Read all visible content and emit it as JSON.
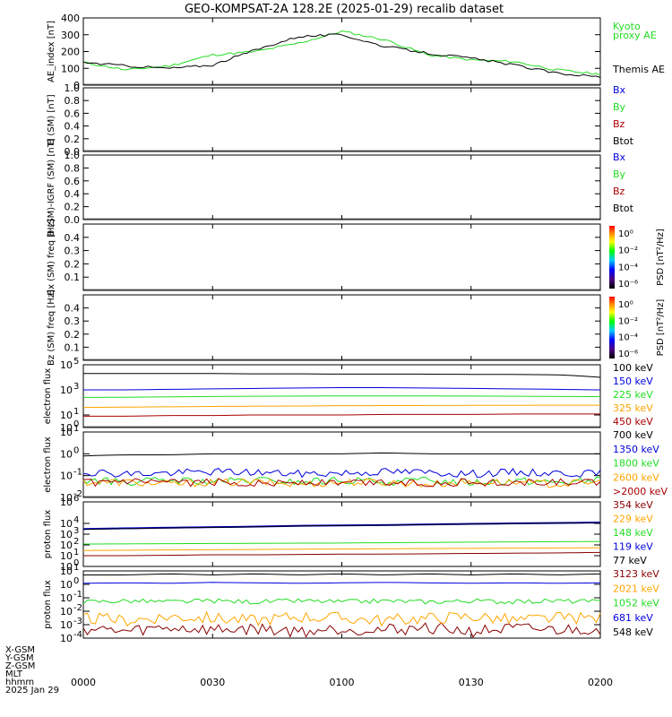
{
  "title": "GEO-KOMPSAT-2A 128.2E (2025-01-29) recalib dataset",
  "colors": {
    "black": "#000000",
    "blue": "#0000dd",
    "green": "#22dd22",
    "red": "#aa0000",
    "orange": "#ffa500",
    "darkred": "#880000"
  },
  "footer": {
    "labels": [
      "X-GSM",
      "Y-GSM",
      "Z-GSM",
      "MLT",
      "hhmm",
      "2025 Jan 29"
    ],
    "times": [
      "0000",
      "0030",
      "0100",
      "0130",
      "0200"
    ]
  },
  "chart_data": [
    {
      "type": "line",
      "ylabel": "AE_index [nT]",
      "ylim": [
        0,
        400
      ],
      "yticks": [
        "400",
        "300",
        "200",
        "100",
        "0"
      ],
      "x": [
        "0000",
        "0010",
        "0020",
        "0030",
        "0040",
        "0050",
        "0100",
        "0110",
        "0120",
        "0130",
        "0140",
        "0150",
        "0200"
      ],
      "series": [
        {
          "name": "Kyoto proxy AE",
          "color": "#22dd22",
          "values": [
            135,
            90,
            115,
            180,
            200,
            250,
            320,
            270,
            180,
            150,
            140,
            90,
            65
          ]
        },
        {
          "name": "Themis AE",
          "color": "#000000",
          "values": [
            135,
            115,
            100,
            120,
            210,
            290,
            300,
            230,
            190,
            160,
            120,
            70,
            50
          ]
        }
      ],
      "legend": [
        {
          "text": "Kyoto",
          "color": "#22dd22"
        },
        {
          "text": "proxy AE",
          "color": "#22dd22"
        },
        {
          "text": "Themis AE",
          "color": "#000000"
        }
      ]
    },
    {
      "type": "line",
      "ylabel": "B (SM) [nT]",
      "ylim": [
        0,
        1
      ],
      "yticks": [
        "1.0",
        "0.8",
        "0.6",
        "0.4",
        "0.2",
        "0.0"
      ],
      "legend": [
        {
          "text": "Bx",
          "color": "#0000dd"
        },
        {
          "text": "By",
          "color": "#22dd22"
        },
        {
          "text": "Bz",
          "color": "#aa0000"
        },
        {
          "text": "Btot",
          "color": "#000000"
        }
      ]
    },
    {
      "type": "line",
      "ylabel": "B (SM)-IGRF (SM) [nT]",
      "ylim": [
        0,
        1
      ],
      "yticks": [
        "1.0",
        "0.8",
        "0.6",
        "0.4",
        "0.2",
        "0.0"
      ],
      "legend": [
        {
          "text": "Bx",
          "color": "#0000dd"
        },
        {
          "text": "By",
          "color": "#22dd22"
        },
        {
          "text": "Bz",
          "color": "#aa0000"
        },
        {
          "text": "Btot",
          "color": "#000000"
        }
      ]
    },
    {
      "type": "heatmap",
      "ylabel": "Bx (SM) freq [Hz]",
      "ylim": [
        0,
        0.5
      ],
      "yticks": [
        "0.4",
        "0.3",
        "0.2",
        "0.1"
      ],
      "colorbar": {
        "label": "PSD [nT²/Hz]",
        "ticks": [
          "10⁰",
          "10⁻²",
          "10⁻⁴",
          "10⁻⁶"
        ]
      }
    },
    {
      "type": "heatmap",
      "ylabel": "Bz (SM) freq [Hz]",
      "ylim": [
        0,
        0.5
      ],
      "yticks": [
        "0.4",
        "0.3",
        "0.2",
        "0.1"
      ],
      "colorbar": {
        "label": "PSD [nT²/Hz]",
        "ticks": [
          "10⁰",
          "10⁻²",
          "10⁻⁴",
          "10⁻⁶"
        ]
      }
    },
    {
      "type": "line",
      "ylabel": "electron flux",
      "scale": "log",
      "ylim_exp": [
        0,
        5
      ],
      "yticks": [
        {
          "b": "10",
          "e": "5"
        },
        {
          "b": "10",
          "e": "3"
        },
        {
          "b": "10",
          "e": "1"
        },
        {
          "b": "10",
          "e": "0"
        }
      ],
      "series": [
        {
          "name": "100 keV",
          "color": "#000000",
          "values": [
            20000,
            20000,
            20000,
            20000,
            19000,
            19000,
            18000,
            18000,
            18000,
            17000,
            17000,
            16000,
            10000
          ]
        },
        {
          "name": "150 keV",
          "color": "#0000dd",
          "values": [
            1000,
            1000,
            1100,
            1200,
            1300,
            1400,
            1500,
            1500,
            1400,
            1300,
            1200,
            1100,
            1000
          ]
        },
        {
          "name": "225 keV",
          "color": "#22dd22",
          "values": [
            250,
            260,
            280,
            300,
            310,
            320,
            330,
            330,
            330,
            320,
            310,
            300,
            290
          ]
        },
        {
          "name": "325 keV",
          "color": "#ffa500",
          "values": [
            40,
            42,
            45,
            48,
            50,
            52,
            55,
            56,
            57,
            58,
            59,
            60,
            60
          ]
        },
        {
          "name": "450 keV",
          "color": "#aa0000",
          "values": [
            8,
            8,
            9,
            9,
            10,
            10,
            10,
            11,
            11,
            11,
            12,
            12,
            12
          ]
        }
      ]
    },
    {
      "type": "line",
      "ylabel": "electron flux",
      "scale": "log",
      "ylim_exp": [
        -2,
        1
      ],
      "yticks": [
        {
          "b": "10",
          "e": "1"
        },
        {
          "b": "10",
          "e": "0"
        },
        {
          "b": "10",
          "e": "-1"
        },
        {
          "b": "10",
          "e": "-2"
        }
      ],
      "series": [
        {
          "name": "700 keV",
          "color": "#000000",
          "values": [
            0.8,
            0.9,
            0.9,
            1.0,
            1.0,
            1.0,
            1.0,
            1.1,
            1.0,
            1.0,
            1.0,
            1.0,
            1.0
          ]
        },
        {
          "name": "1350 keV",
          "color": "#0000dd",
          "values": [
            0.15,
            0.12,
            0.13,
            0.15,
            0.14,
            0.12,
            0.13,
            0.15,
            0.14,
            0.12,
            0.14,
            0.13,
            0.12
          ]
        },
        {
          "name": "1800 keV",
          "color": "#22dd22",
          "values": [
            0.06,
            0.05,
            0.06,
            0.05,
            0.06,
            0.05,
            0.06,
            0.05,
            0.06,
            0.05,
            0.06,
            0.05,
            0.06
          ]
        },
        {
          "name": "2600 keV",
          "color": "#ffa500",
          "values": [
            0.05,
            0.05,
            0.04,
            0.05,
            0.05,
            0.04,
            0.05,
            0.05,
            0.04,
            0.05,
            0.05,
            0.04,
            0.05
          ]
        },
        {
          "name": ">2000 keV",
          "color": "#aa0000",
          "values": [
            0.045,
            0.05,
            0.045,
            0.05,
            0.045,
            0.05,
            0.045,
            0.05,
            0.045,
            0.05,
            0.045,
            0.05,
            0.045
          ]
        }
      ]
    },
    {
      "type": "line",
      "ylabel": "proton flux",
      "scale": "log",
      "ylim_exp": [
        0,
        6
      ],
      "yticks": [
        {
          "b": "10",
          "e": "6"
        },
        {
          "b": "10",
          "e": "4"
        },
        {
          "b": "10",
          "e": "3"
        },
        {
          "b": "10",
          "e": "2"
        },
        {
          "b": "10",
          "e": "1"
        },
        {
          "b": "10",
          "e": "0"
        }
      ],
      "series": [
        {
          "name": "354 keV",
          "color": "#880000",
          "values": [
            10,
            10,
            11,
            12,
            12,
            13,
            14,
            14,
            15,
            16,
            17,
            18,
            20
          ]
        },
        {
          "name": "229 keV",
          "color": "#ffa500",
          "values": [
            30,
            32,
            34,
            36,
            38,
            40,
            42,
            44,
            46,
            48,
            50,
            52,
            55
          ]
        },
        {
          "name": "148 keV",
          "color": "#22dd22",
          "values": [
            120,
            125,
            130,
            135,
            140,
            145,
            150,
            160,
            170,
            180,
            190,
            200,
            210
          ]
        },
        {
          "name": "119 keV",
          "color": "#0000dd",
          "values": [
            3000,
            3500,
            4000,
            4500,
            5000,
            6000,
            6500,
            7000,
            8000,
            9000,
            10000,
            11000,
            12000
          ]
        },
        {
          "name": "77 keV",
          "color": "#000000",
          "values": [
            2800,
            3300,
            3800,
            4300,
            4800,
            5800,
            6300,
            6800,
            7800,
            8800,
            9800,
            10800,
            11800
          ]
        }
      ]
    },
    {
      "type": "line",
      "ylabel": "proton flux",
      "scale": "log",
      "ylim_exp": [
        -4,
        1
      ],
      "yticks": [
        {
          "b": "10",
          "e": "1"
        },
        {
          "b": "10",
          "e": "0"
        },
        {
          "b": "10",
          "e": "-1"
        },
        {
          "b": "10",
          "e": "-2"
        },
        {
          "b": "10",
          "e": "-3"
        },
        {
          "b": "10",
          "e": "-4"
        }
      ],
      "series": [
        {
          "name": "3123 keV",
          "color": "#880000",
          "values": [
            0.0005,
            0.0003,
            0.0006,
            0.0004,
            0.0005,
            0.0003,
            0.0005,
            0.0004,
            0.0006,
            0.0003,
            0.0005,
            0.0004,
            0.0005
          ]
        },
        {
          "name": "2021 keV",
          "color": "#ffa500",
          "values": [
            0.003,
            0.002,
            0.004,
            0.003,
            0.002,
            0.004,
            0.003,
            0.002,
            0.003,
            0.004,
            0.002,
            0.003,
            0.003
          ]
        },
        {
          "name": "1052 keV",
          "color": "#22dd22",
          "values": [
            0.05,
            0.06,
            0.05,
            0.06,
            0.05,
            0.06,
            0.05,
            0.06,
            0.05,
            0.06,
            0.05,
            0.06,
            0.05
          ]
        },
        {
          "name": "681 keV",
          "color": "#0000dd",
          "values": [
            1.2,
            1.3,
            1.2,
            1.4,
            1.3,
            1.2,
            1.3,
            1.4,
            1.3,
            1.2,
            1.3,
            1.2,
            1.3
          ]
        },
        {
          "name": "548 keV",
          "color": "#000000",
          "values": [
            5,
            5,
            6,
            5,
            6,
            5,
            6,
            5,
            6,
            5,
            6,
            5,
            6
          ]
        }
      ]
    }
  ]
}
